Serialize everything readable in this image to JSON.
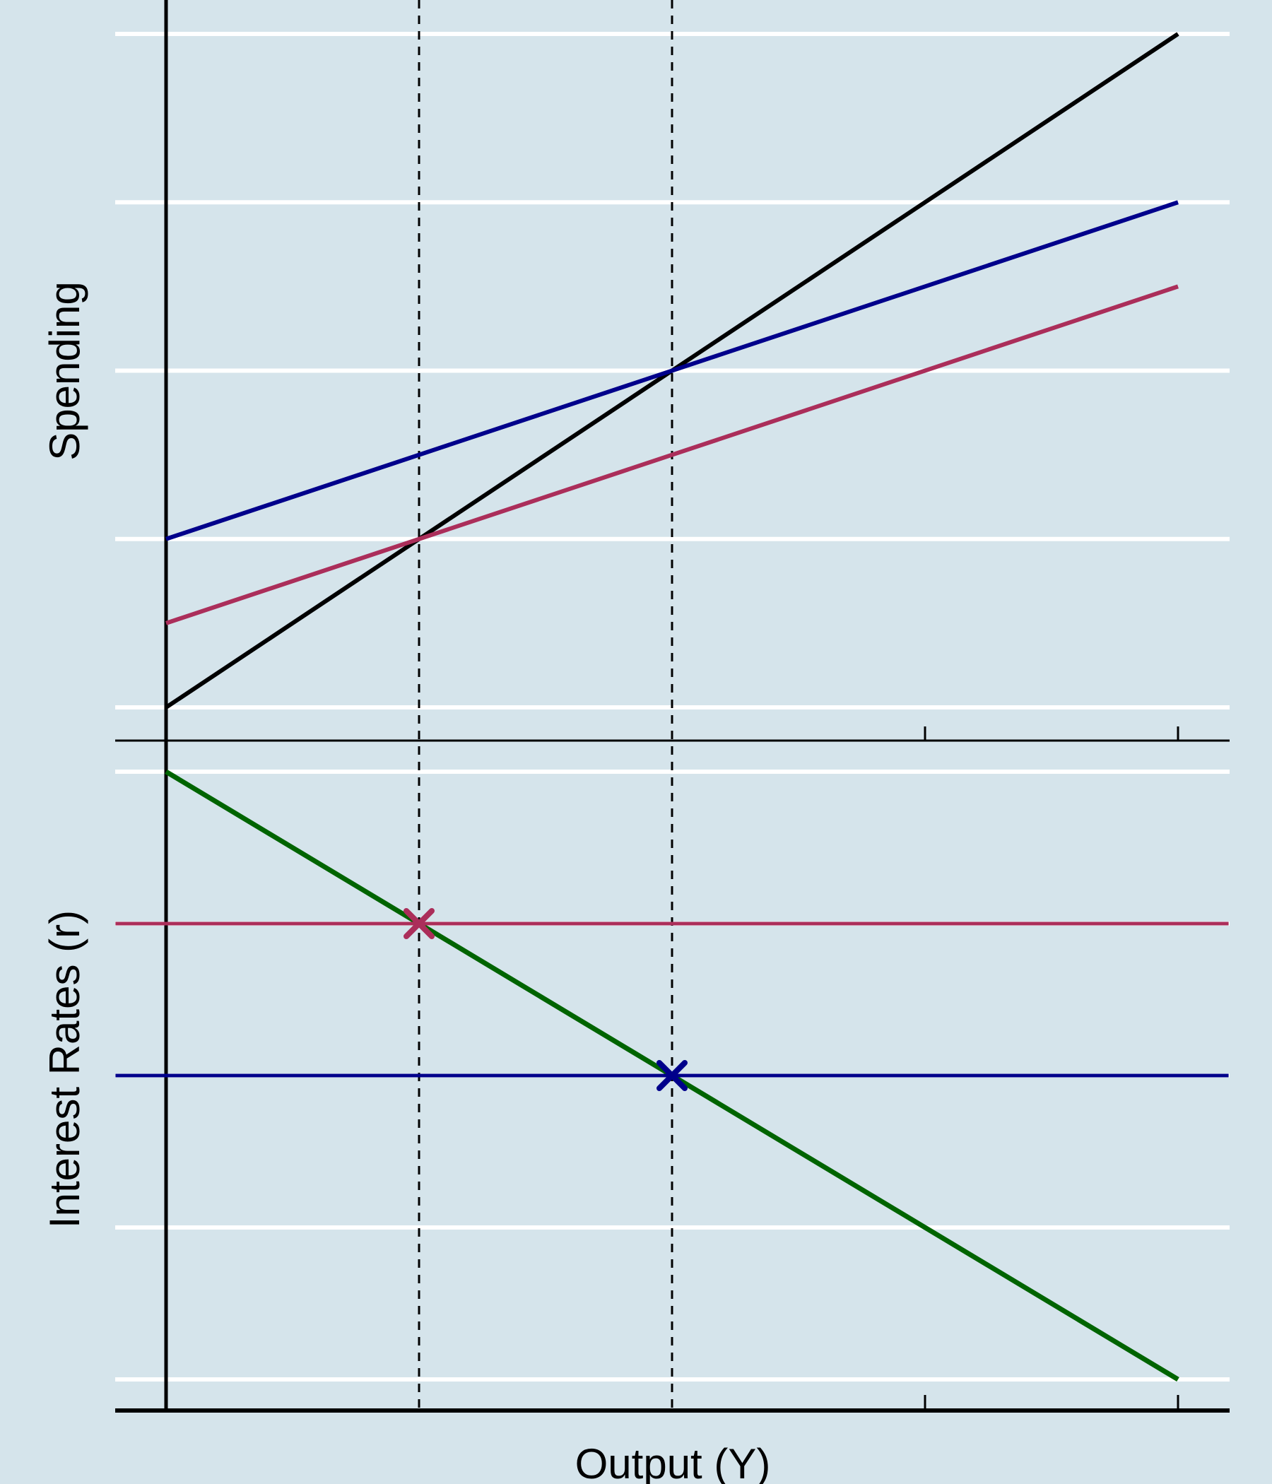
{
  "colors": {
    "background": "#d5e4eb",
    "gridline": "#ffffff",
    "axis": "#000000",
    "guideline": "#000000"
  },
  "chart_data": [
    {
      "type": "line",
      "panel": "top",
      "title": "",
      "xlabel": "",
      "ylabel": "Spending",
      "xlim": [
        0,
        4
      ],
      "ylim": [
        0,
        4
      ],
      "grid": true,
      "legend": "none",
      "y_gridlines": [
        0,
        1,
        2,
        3,
        4
      ],
      "x_ticks": [
        3,
        4
      ],
      "series": [
        {
          "color": "#000000",
          "x": [
            0,
            4
          ],
          "y": [
            0,
            4
          ]
        },
        {
          "color": "#00008b",
          "x": [
            0,
            4
          ],
          "y": [
            1,
            3
          ]
        },
        {
          "color": "#ab2e5a",
          "x": [
            0,
            4
          ],
          "y": [
            0.5,
            2.5
          ]
        }
      ],
      "guidelines_x": [
        1,
        2
      ]
    },
    {
      "type": "line",
      "panel": "bottom",
      "title": "",
      "xlabel": "Output (Y)",
      "ylabel": "Interest Rates (r)",
      "xlim": [
        0,
        4
      ],
      "ylim": [
        0,
        4
      ],
      "grid": true,
      "legend": "none",
      "y_gridlines": [
        0,
        1,
        2,
        3,
        4
      ],
      "x_ticks": [
        3,
        4
      ],
      "series": [
        {
          "color": "#006400",
          "x": [
            0,
            4
          ],
          "y": [
            4,
            0
          ]
        },
        {
          "color": "#ab2e5a",
          "x": [
            -0.2,
            4.2
          ],
          "y": [
            3,
            3
          ]
        },
        {
          "color": "#00008b",
          "x": [
            -0.2,
            4.2
          ],
          "y": [
            2,
            2
          ]
        }
      ],
      "markers": [
        {
          "x": 1,
          "y": 3,
          "color": "#ab2e5a",
          "symbol": "x"
        },
        {
          "x": 2,
          "y": 2,
          "color": "#00008b",
          "symbol": "x"
        }
      ],
      "guidelines_x": [
        1,
        2
      ]
    }
  ]
}
